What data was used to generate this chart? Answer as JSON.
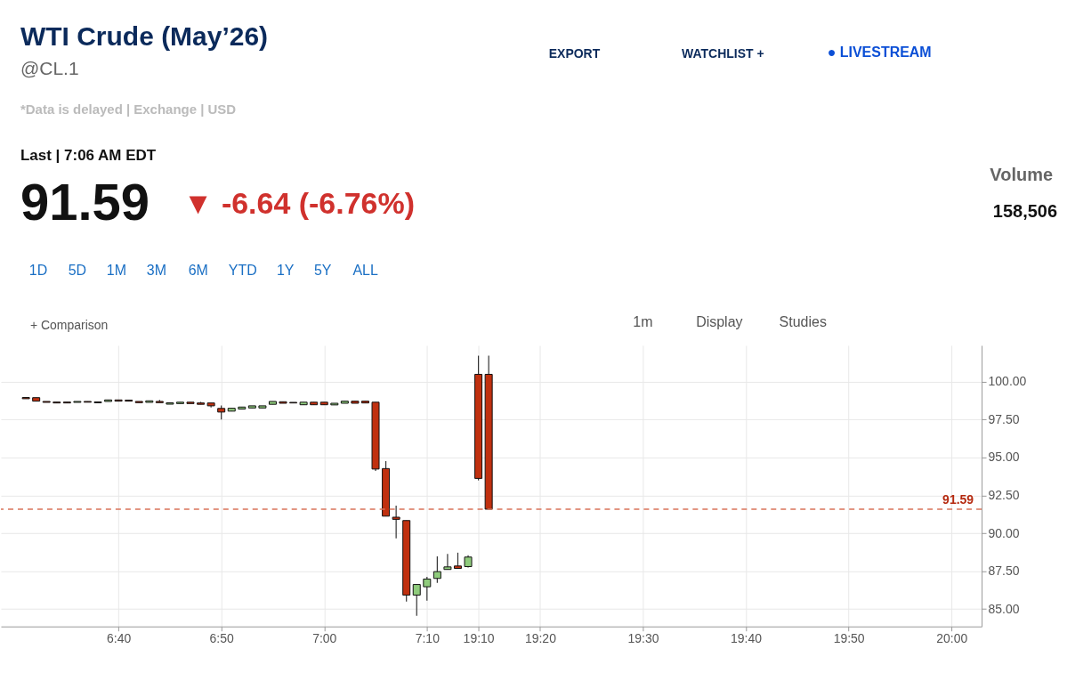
{
  "chart_data": {
    "type": "candlestick",
    "title": "WTI Crude (May’26)",
    "subtitle": "@CL.1",
    "annotations": [
      "*Data is delayed | Exchange | USD",
      "Last | 7:06 AM EDT",
      "91.59",
      "▼ -6.64 (-6.76%)",
      "Volume",
      "158,506",
      "1D",
      "5D",
      "1M",
      "3M",
      "6M",
      "YTD",
      "1Y",
      "5Y",
      "ALL",
      "+ Comparison",
      "1m",
      "Display",
      "Studies",
      "EXPORT",
      "WATCHLIST +",
      "● LIVESTREAM"
    ],
    "categories": [
      null,
      null,
      null,
      null,
      null,
      null,
      null,
      null,
      null,
      "6:40",
      null,
      null,
      null,
      null,
      null,
      null,
      null,
      null,
      null,
      "6:50",
      null,
      null,
      null,
      null,
      null,
      null,
      null,
      null,
      null,
      "7:00",
      null,
      null,
      null,
      null,
      null,
      null,
      null,
      null,
      null,
      "7:10",
      null,
      null,
      null,
      null,
      "19:10",
      null,
      null,
      null,
      null,
      null,
      "19:20",
      null,
      null,
      null,
      null,
      null,
      null,
      null,
      null,
      null,
      "19:30",
      null,
      null,
      null,
      null,
      null,
      null,
      null,
      null,
      null,
      "19:40",
      null,
      null,
      null,
      null,
      null,
      null,
      null,
      null,
      null,
      "19:50",
      null,
      null,
      null,
      null,
      null,
      null,
      null,
      null,
      null,
      "20:00",
      null,
      null
    ],
    "ohlc": [
      [
        98.96,
        98.96,
        98.88,
        98.88
      ],
      [
        98.95,
        98.95,
        98.72,
        98.72
      ],
      [
        98.7,
        98.7,
        98.64,
        98.64
      ],
      [
        98.66,
        98.66,
        98.6,
        98.6
      ],
      [
        98.66,
        98.66,
        98.6,
        98.6
      ],
      [
        98.64,
        98.7,
        98.64,
        98.7
      ],
      [
        98.7,
        98.7,
        98.65,
        98.65
      ],
      [
        98.67,
        98.67,
        98.61,
        98.61
      ],
      [
        98.7,
        98.8,
        98.7,
        98.8
      ],
      [
        98.8,
        98.8,
        98.72,
        98.72
      ],
      [
        98.79,
        98.79,
        98.72,
        98.72
      ],
      [
        98.7,
        98.7,
        98.62,
        98.62
      ],
      [
        98.64,
        98.74,
        98.64,
        98.74
      ],
      [
        98.7,
        98.8,
        98.62,
        98.62
      ],
      [
        98.52,
        98.61,
        98.52,
        98.61
      ],
      [
        98.56,
        98.65,
        98.56,
        98.65
      ],
      [
        98.65,
        98.65,
        98.56,
        98.56
      ],
      [
        98.6,
        98.67,
        98.51,
        98.51
      ],
      [
        98.6,
        98.6,
        98.3,
        98.41
      ],
      [
        98.24,
        98.43,
        97.51,
        98.0
      ],
      [
        98.06,
        98.25,
        98.06,
        98.25
      ],
      [
        98.2,
        98.33,
        98.2,
        98.33
      ],
      [
        98.27,
        98.41,
        98.27,
        98.41
      ],
      [
        98.27,
        98.41,
        98.27,
        98.41
      ],
      [
        98.51,
        98.7,
        98.51,
        98.7
      ],
      [
        98.68,
        98.68,
        98.58,
        98.58
      ],
      [
        98.64,
        98.64,
        98.6,
        98.6
      ],
      [
        98.48,
        98.65,
        98.48,
        98.65
      ],
      [
        98.65,
        98.65,
        98.48,
        98.48
      ],
      [
        98.65,
        98.65,
        98.48,
        98.48
      ],
      [
        98.47,
        98.58,
        98.47,
        98.58
      ],
      [
        98.58,
        98.72,
        98.58,
        98.72
      ],
      [
        98.72,
        98.72,
        98.58,
        98.58
      ],
      [
        98.72,
        98.72,
        98.6,
        98.6
      ],
      [
        98.65,
        98.65,
        94.12,
        94.24
      ],
      [
        94.27,
        94.76,
        91.13,
        91.13
      ],
      [
        91.06,
        91.82,
        89.66,
        90.92
      ],
      [
        90.84,
        90.84,
        85.49,
        85.92
      ],
      [
        85.92,
        86.62,
        84.56,
        86.62
      ],
      [
        86.47,
        87.12,
        85.55,
        86.98
      ],
      [
        87.02,
        88.47,
        86.72,
        87.47
      ],
      [
        87.61,
        88.63,
        87.61,
        87.78
      ],
      [
        87.84,
        88.72,
        87.68,
        87.68
      ],
      [
        87.8,
        88.55,
        87.74,
        88.43
      ],
      [
        100.49,
        101.72,
        93.49,
        93.62
      ],
      [
        100.49,
        101.72,
        91.59,
        91.59
      ],
      null,
      null,
      null,
      null,
      null,
      null,
      null,
      null,
      null,
      null,
      null,
      null,
      null,
      null,
      null,
      null,
      null,
      null,
      null,
      null,
      null,
      null,
      null,
      null,
      null,
      null,
      null,
      null,
      null,
      null,
      null,
      null,
      null,
      null,
      null,
      null,
      null,
      null,
      null,
      null,
      null,
      null,
      null,
      null,
      null,
      null,
      null
    ],
    "colors": [
      "#c0300f",
      "#c0300f",
      "#c0300f",
      "#c0300f",
      "#c0300f",
      "#8fcb7c",
      "#c0300f",
      "#c0300f",
      "#8fcb7c",
      "#c0300f",
      "#c0300f",
      "#c0300f",
      "#8fcb7c",
      "#c0300f",
      "#8fcb7c",
      "#8fcb7c",
      "#c0300f",
      "#c0300f",
      "#c0300f",
      "#c0300f",
      "#8fcb7c",
      "#8fcb7c",
      "#8fcb7c",
      "#8fcb7c",
      "#8fcb7c",
      "#c0300f",
      "#c0300f",
      "#8fcb7c",
      "#c0300f",
      "#c0300f",
      "#8fcb7c",
      "#8fcb7c",
      "#c0300f",
      "#c0300f",
      "#c0300f",
      "#c0300f",
      "#c0300f",
      "#c0300f",
      "#8fcb7c",
      "#8fcb7c",
      "#8fcb7c",
      "#8fcb7c",
      "#c0300f",
      "#8fcb7c",
      "#c0300f",
      "#c0300f",
      null,
      null,
      null,
      null,
      null,
      null,
      null,
      null,
      null,
      null,
      null,
      null,
      null,
      null,
      null,
      null,
      null,
      null,
      null,
      null,
      null,
      null,
      null,
      null,
      null,
      null,
      null,
      null,
      null,
      null,
      null,
      null,
      null,
      null,
      null,
      null,
      null,
      null,
      null,
      null,
      null,
      null,
      null,
      null,
      null,
      null,
      null
    ],
    "ylim": [
      83.85,
      102.4
    ],
    "yticks": [
      {
        "value": 85,
        "label": "85.00"
      },
      {
        "value": 87.5,
        "label": "87.50"
      },
      {
        "value": 90,
        "label": "90.00"
      },
      {
        "value": 92.5,
        "label": "92.50"
      },
      {
        "value": 95,
        "label": "95.00"
      },
      {
        "value": 97.5,
        "label": "97.50"
      },
      {
        "value": 100,
        "label": "100.00"
      }
    ],
    "ref_lines": [
      {
        "axis": "y",
        "value": 91.59,
        "label": "91.59",
        "color": "#d9735a",
        "line_style": "dashed"
      }
    ],
    "grid": true,
    "legend": false
  }
}
